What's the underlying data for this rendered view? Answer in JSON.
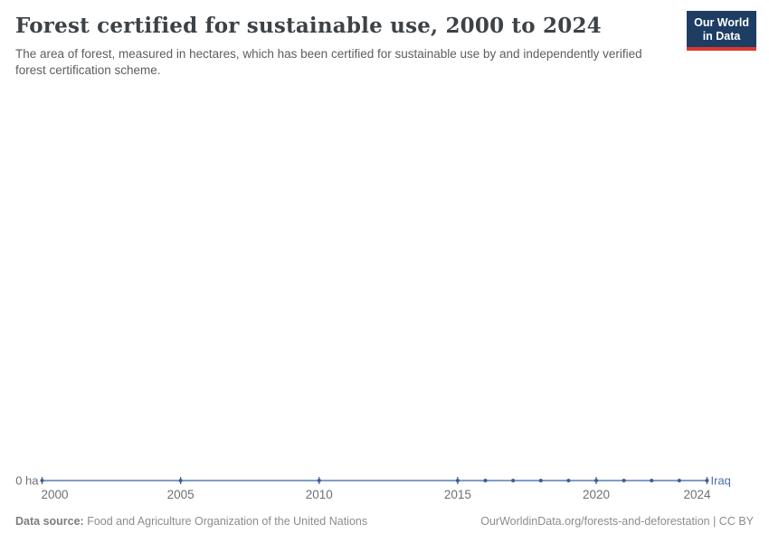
{
  "header": {
    "title": "Forest certified for sustainable use, 2000 to 2024",
    "subtitle": "The area of forest, measured in hectares, which has been certified for sustainable use by and independently verified forest certification scheme.",
    "logo": {
      "line1": "Our World",
      "line2": "in Data"
    }
  },
  "chart_data": {
    "type": "line",
    "title": "Forest certified for sustainable use, 2000 to 2024",
    "series": [
      {
        "name": "Iraq",
        "x": [
          2000,
          2005,
          2010,
          2015,
          2016,
          2017,
          2018,
          2019,
          2020,
          2021,
          2022,
          2023,
          2024
        ],
        "values": [
          0,
          0,
          0,
          0,
          0,
          0,
          0,
          0,
          0,
          0,
          0,
          0,
          0
        ]
      }
    ],
    "x_ticks": [
      2000,
      2005,
      2010,
      2015,
      2020,
      2024
    ],
    "xlim": [
      2000,
      2024
    ],
    "ylim": [
      0,
      0
    ],
    "y_axis_label": "0 ha",
    "unit": "hectares",
    "grid": false,
    "legend_position": "end-of-line",
    "line_color": "#5b7cb6",
    "marker_color": "#3d5c96",
    "entity_color": "#4c6fa8"
  },
  "footer": {
    "source_label": "Data source:",
    "source_text": " Food and Agriculture Organization of the United Nations",
    "attribution": "OurWorldinData.org/forests-and-deforestation | CC BY"
  },
  "colors": {
    "logo_bg": "#1d3d63",
    "logo_bar": "#dc392d",
    "title_text": "#3d4247",
    "subtitle_text": "#5b5e61",
    "axis_text": "#6e7073",
    "footer_text": "#8a8d8f"
  }
}
